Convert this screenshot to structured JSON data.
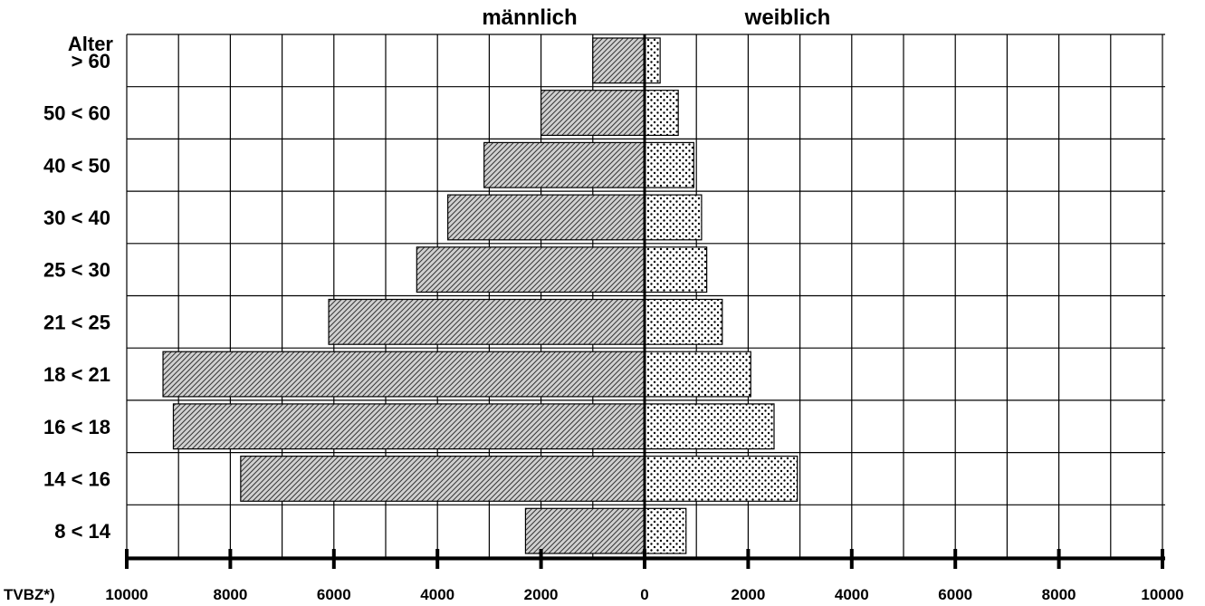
{
  "chart_data": {
    "type": "bar",
    "orientation": "horizontal",
    "layout": "population-pyramid",
    "left_header": "männlich",
    "right_header": "weiblich",
    "y_title": "Alter",
    "x_title": "TVBZ*)",
    "categories": [
      "> 60",
      "50 < 60",
      "40 < 50",
      "30 < 40",
      "25 < 30",
      "21 < 25",
      "18 < 21",
      "16 < 18",
      "14 < 16",
      "8 < 14"
    ],
    "series": [
      {
        "name": "männlich",
        "side": "left",
        "pattern": "diagonal-hatch",
        "values": [
          1000,
          2000,
          3100,
          3800,
          4400,
          6100,
          9300,
          9100,
          7800,
          2300
        ]
      },
      {
        "name": "weiblich",
        "side": "right",
        "pattern": "dots",
        "values": [
          300,
          650,
          950,
          1100,
          1200,
          1500,
          2050,
          2500,
          2950,
          800
        ]
      }
    ],
    "xlim": [
      -10000,
      10000
    ],
    "x_tick_labels": [
      "10000",
      "8000",
      "6000",
      "4000",
      "2000",
      "0",
      "2000",
      "4000",
      "6000",
      "8000",
      "10000"
    ],
    "grid": true,
    "colors": {
      "bar_fill": "#555555",
      "background": "#ffffff",
      "grid": "#000000"
    }
  }
}
